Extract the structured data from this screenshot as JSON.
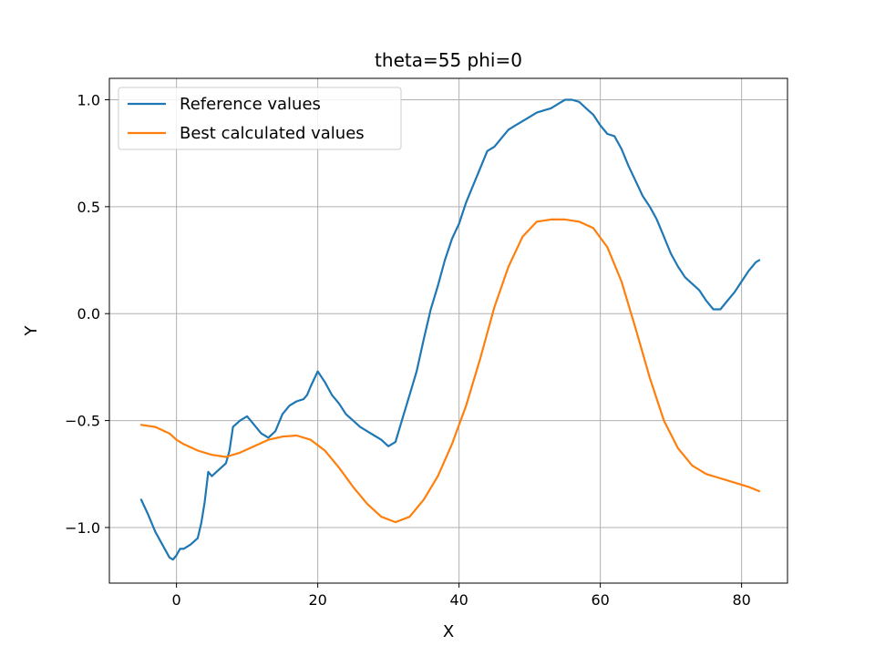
{
  "chart_data": {
    "type": "line",
    "title": "theta=55 phi=0",
    "xlabel": "X",
    "ylabel": "Y",
    "xlim": [
      -9.5,
      86.5
    ],
    "ylim": [
      -1.26,
      1.1
    ],
    "x_ticks": [
      0,
      20,
      40,
      60,
      80
    ],
    "y_ticks": [
      -1.0,
      -0.5,
      0.0,
      0.5,
      1.0
    ],
    "x_tick_labels": [
      "0",
      "20",
      "40",
      "60",
      "80"
    ],
    "y_tick_labels": [
      "−1.0",
      "−0.5",
      "0.0",
      "0.5",
      "1.0"
    ],
    "grid": true,
    "legend_position": "top-left",
    "series": [
      {
        "name": "Reference values",
        "color": "#1f77b4",
        "x": [
          -5,
          -4,
          -3,
          -2,
          -1,
          -0.5,
          0,
          0.5,
          1,
          2,
          3,
          3.5,
          4,
          4.5,
          5,
          6,
          7,
          7.5,
          8,
          9,
          10,
          11,
          12,
          13,
          14,
          15,
          16,
          17,
          18,
          18.5,
          19,
          20,
          21,
          22,
          23,
          24,
          25,
          26,
          27,
          28,
          29,
          30,
          31,
          32,
          33,
          34,
          35,
          36,
          37,
          38,
          39,
          40,
          41,
          42,
          43,
          44,
          45,
          46,
          47,
          48,
          49,
          50,
          51,
          52,
          53,
          54,
          55,
          56,
          57,
          58,
          59,
          60,
          61,
          62,
          63,
          64,
          65,
          66,
          67,
          68,
          69,
          70,
          71,
          72,
          73,
          74,
          75,
          76,
          77,
          78,
          79,
          80,
          81,
          82,
          82.5
        ],
        "y": [
          -0.87,
          -0.94,
          -1.02,
          -1.08,
          -1.14,
          -1.15,
          -1.13,
          -1.1,
          -1.1,
          -1.08,
          -1.05,
          -0.98,
          -0.88,
          -0.74,
          -0.76,
          -0.73,
          -0.7,
          -0.64,
          -0.53,
          -0.5,
          -0.48,
          -0.52,
          -0.56,
          -0.58,
          -0.55,
          -0.47,
          -0.43,
          -0.41,
          -0.4,
          -0.38,
          -0.34,
          -0.27,
          -0.32,
          -0.38,
          -0.42,
          -0.47,
          -0.5,
          -0.53,
          -0.55,
          -0.57,
          -0.59,
          -0.62,
          -0.6,
          -0.49,
          -0.38,
          -0.27,
          -0.12,
          0.02,
          0.13,
          0.25,
          0.35,
          0.42,
          0.52,
          0.6,
          0.68,
          0.76,
          0.78,
          0.82,
          0.86,
          0.88,
          0.9,
          0.92,
          0.94,
          0.95,
          0.96,
          0.98,
          1.0,
          1.0,
          0.99,
          0.96,
          0.93,
          0.88,
          0.84,
          0.83,
          0.77,
          0.69,
          0.62,
          0.55,
          0.5,
          0.44,
          0.36,
          0.28,
          0.22,
          0.17,
          0.14,
          0.11,
          0.06,
          0.02,
          0.02,
          0.06,
          0.1,
          0.15,
          0.2,
          0.24,
          0.25
        ]
      },
      {
        "name": "Best calculated values",
        "color": "#ff7f0e",
        "x": [
          -5,
          -3,
          -1,
          0,
          1,
          3,
          5,
          7,
          9,
          11,
          13,
          15,
          17,
          19,
          21,
          23,
          25,
          27,
          29,
          31,
          33,
          35,
          37,
          39,
          41,
          43,
          45,
          47,
          49,
          51,
          53,
          55,
          57,
          59,
          61,
          63,
          65,
          67,
          69,
          71,
          73,
          75,
          77,
          79,
          81,
          82.5
        ],
        "y": [
          -0.52,
          -0.53,
          -0.56,
          -0.59,
          -0.61,
          -0.64,
          -0.66,
          -0.67,
          -0.65,
          -0.62,
          -0.59,
          -0.575,
          -0.57,
          -0.59,
          -0.64,
          -0.72,
          -0.81,
          -0.89,
          -0.95,
          -0.975,
          -0.95,
          -0.87,
          -0.76,
          -0.61,
          -0.43,
          -0.21,
          0.03,
          0.22,
          0.36,
          0.43,
          0.44,
          0.44,
          0.43,
          0.4,
          0.31,
          0.15,
          -0.07,
          -0.3,
          -0.5,
          -0.63,
          -0.71,
          -0.75,
          -0.77,
          -0.79,
          -0.81,
          -0.83
        ]
      }
    ]
  }
}
